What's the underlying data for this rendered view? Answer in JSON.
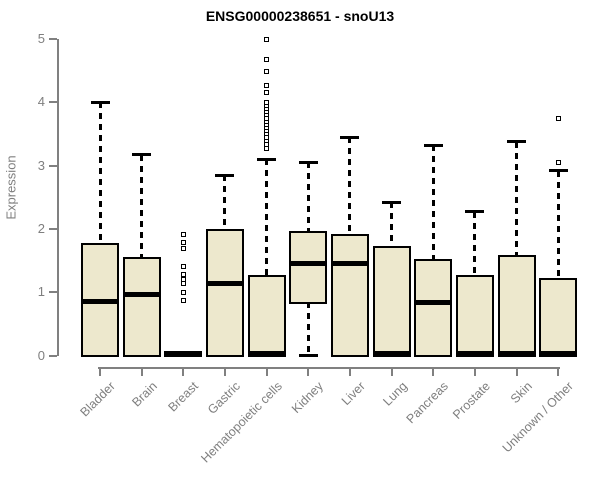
{
  "chart_data": {
    "type": "boxplot",
    "title": "ENSG00000238651 - snoU13",
    "xlabel": "",
    "ylabel": "Expression",
    "ylim": [
      0,
      5
    ],
    "yticks": [
      0,
      1,
      2,
      3,
      4,
      5
    ],
    "grid": false,
    "legend": "none",
    "box_fill_color": "#EDE8CD",
    "box_border_color": "#000000",
    "axis_color": "#808080",
    "label_color": "#7f7f7f",
    "categories": [
      "Bladder",
      "Brain",
      "Breast",
      "Gastric",
      "Hematopoietic cells",
      "Kidney",
      "Liver",
      "Lung",
      "Pancreas",
      "Prostate",
      "Skin",
      "Unknown / Other"
    ],
    "boxes": [
      {
        "category": "Bladder",
        "whisker_low": 0,
        "q1": 0,
        "median": 0.85,
        "q3": 1.74,
        "whisker_high": 4.0,
        "outliers": []
      },
      {
        "category": "Brain",
        "whisker_low": 0,
        "q1": 0,
        "median": 0.96,
        "q3": 1.52,
        "whisker_high": 3.17,
        "outliers": []
      },
      {
        "category": "Breast",
        "whisker_low": 0,
        "q1": 0,
        "median": 0.02,
        "q3": 0.04,
        "whisker_high": 0.04,
        "outliers": [
          0.87,
          1.0,
          1.13,
          1.2,
          1.28,
          1.4,
          1.69,
          1.79,
          1.91
        ]
      },
      {
        "category": "Gastric",
        "whisker_low": 0,
        "q1": 0,
        "median": 1.13,
        "q3": 1.96,
        "whisker_high": 2.85,
        "outliers": []
      },
      {
        "category": "Hematopoietic cells",
        "whisker_low": 0,
        "q1": 0,
        "median": 0.03,
        "q3": 1.24,
        "whisker_high": 3.1,
        "outliers": [
          3.27,
          3.33,
          3.4,
          3.45,
          3.5,
          3.55,
          3.6,
          3.65,
          3.7,
          3.75,
          3.8,
          3.85,
          3.9,
          3.95,
          4.0,
          4.16,
          4.26,
          4.49,
          4.68,
          4.99
        ]
      },
      {
        "category": "Kidney",
        "whisker_low": 0,
        "q1": 0.85,
        "median": 1.45,
        "q3": 1.93,
        "whisker_high": 3.05,
        "outliers": []
      },
      {
        "category": "Liver",
        "whisker_low": 0,
        "q1": 0,
        "median": 1.45,
        "q3": 1.89,
        "whisker_high": 3.45,
        "outliers": []
      },
      {
        "category": "Lung",
        "whisker_low": 0,
        "q1": 0,
        "median": 0.03,
        "q3": 1.7,
        "whisker_high": 2.42,
        "outliers": []
      },
      {
        "category": "Pancreas",
        "whisker_low": 0,
        "q1": 0,
        "median": 0.84,
        "q3": 1.5,
        "whisker_high": 3.32,
        "outliers": []
      },
      {
        "category": "Prostate",
        "whisker_low": 0,
        "q1": 0,
        "median": 0.03,
        "q3": 1.24,
        "whisker_high": 2.27,
        "outliers": []
      },
      {
        "category": "Skin",
        "whisker_low": 0,
        "q1": 0,
        "median": 0.03,
        "q3": 1.55,
        "whisker_high": 3.38,
        "outliers": []
      },
      {
        "category": "Unknown / Other",
        "whisker_low": 0,
        "q1": 0,
        "median": 0.03,
        "q3": 1.19,
        "whisker_high": 2.92,
        "outliers": [
          3.05,
          3.75
        ]
      }
    ]
  }
}
